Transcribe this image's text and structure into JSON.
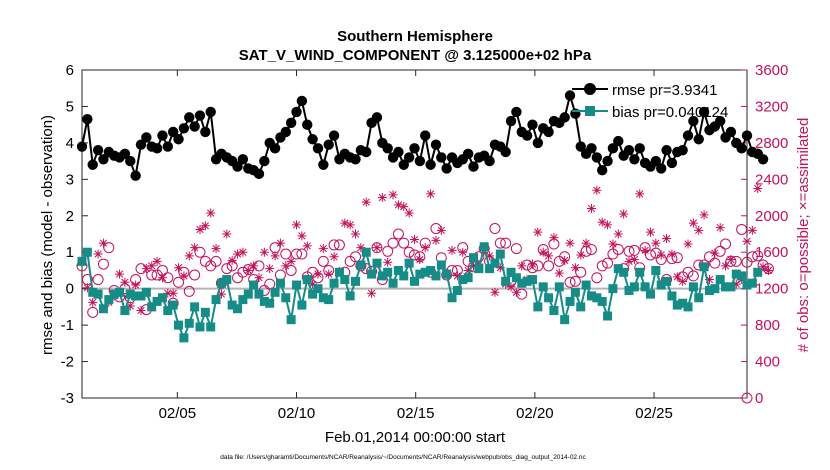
{
  "chart_data": {
    "type": "line",
    "title": "Southern Hemisphere",
    "subtitle": "SAT_V_WIND_COMPONENT @ 3.125000e+02 hPa",
    "xlabel": "Feb.01,2014 00:00:00 start",
    "ylabel": "rmse and bias (model - observation)",
    "y2label": "# of obs: o=possible; ×=assimilated",
    "footnote": "data file: /Users/gharamti/Documents/NCAR/Reanalysis/~/Documents/NCAR/Reanalysis/webpub/obs_diag_output_2014-02.nc",
    "xlim": [
      1,
      28.9
    ],
    "ylim": [
      -3,
      6
    ],
    "y2lim": [
      0,
      3600
    ],
    "x_ticks": [
      5,
      10,
      15,
      20,
      25
    ],
    "x_tick_labels": [
      "02/05",
      "02/10",
      "02/15",
      "02/20",
      "02/25"
    ],
    "y_ticks": [
      -3,
      -2,
      -1,
      0,
      1,
      2,
      3,
      4,
      5,
      6
    ],
    "y2_ticks": [
      0,
      400,
      800,
      1200,
      1600,
      2000,
      2400,
      2800,
      3200,
      3600
    ],
    "legend_position": "top-right",
    "grid": false,
    "colors": {
      "rmse": "#000000",
      "bias": "#148c87",
      "obs": "#c8105a",
      "zero": "#b4b4b4"
    },
    "series": [
      {
        "name": "rmse pr=3.9341",
        "axis": "left",
        "values": [
          3.9,
          4.65,
          3.4,
          3.8,
          3.55,
          3.75,
          3.65,
          3.6,
          3.7,
          3.5,
          3.1,
          3.95,
          4.15,
          3.9,
          3.85,
          4.2,
          3.9,
          4.3,
          4.1,
          4.4,
          4.7,
          4.45,
          4.75,
          4.3,
          4.85,
          3.55,
          3.7,
          3.6,
          3.5,
          3.35,
          3.55,
          3.3,
          3.25,
          3.15,
          3.5,
          4.0,
          3.85,
          4.15,
          4.3,
          4.55,
          4.85,
          5.15,
          4.5,
          4.1,
          3.85,
          3.4,
          3.95,
          4.2,
          3.55,
          3.7,
          3.6,
          3.55,
          3.8,
          3.75,
          4.55,
          4.7,
          4.0,
          3.85,
          3.6,
          3.75,
          3.4,
          3.6,
          3.85,
          3.5,
          4.2,
          3.4,
          3.95,
          3.6,
          3.3,
          3.6,
          3.45,
          3.55,
          3.7,
          3.35,
          3.6,
          3.65,
          3.5,
          3.95,
          3.9,
          3.75,
          4.6,
          4.85,
          4.3,
          4.2,
          4.5,
          4.0,
          4.4,
          4.3,
          4.6,
          4.55,
          4.7,
          5.3,
          4.8,
          3.9,
          3.7,
          3.85,
          3.6,
          3.25,
          3.5,
          3.85,
          4.05,
          3.65,
          3.8,
          3.55,
          3.85,
          3.45,
          3.35,
          3.5,
          3.3,
          3.8,
          3.45,
          3.75,
          3.8,
          4.2,
          4.6,
          4.1,
          4.85,
          4.35,
          4.45,
          4.6,
          4.15,
          4.3,
          4.0,
          3.85,
          4.2,
          3.75,
          3.7,
          3.55
        ]
      },
      {
        "name": "bias pr=0.040124",
        "axis": "left",
        "values": [
          0.75,
          1.0,
          -0.1,
          -0.15,
          -0.55,
          -0.3,
          -0.15,
          -0.1,
          -0.6,
          -0.15,
          -0.2,
          -0.2,
          -0.1,
          -0.5,
          -0.35,
          -0.25,
          -0.6,
          -0.45,
          -1.0,
          -1.35,
          -0.95,
          -0.5,
          -1.05,
          -0.65,
          -1.05,
          -0.3,
          0.15,
          0.25,
          -0.45,
          -0.55,
          -0.3,
          -0.15,
          0.1,
          -0.15,
          -0.35,
          -0.4,
          -0.1,
          0.15,
          -0.25,
          -0.85,
          0.1,
          -0.45,
          0.25,
          -0.15,
          0.0,
          -0.25,
          -0.3,
          0.15,
          0.45,
          0.25,
          -0.2,
          0.2,
          0.65,
          1.0,
          0.4,
          0.7,
          0.35,
          0.45,
          0.15,
          0.5,
          0.35,
          0.7,
          0.2,
          0.4,
          0.45,
          0.5,
          0.35,
          0.65,
          0.4,
          -0.25,
          -0.05,
          0.25,
          0.3,
          0.85,
          0.55,
          1.15,
          0.55,
          0.7,
          0.95,
          0.2,
          0.45,
          0.3,
          0.15,
          0.2,
          0.25,
          -0.5,
          0.05,
          -0.25,
          -0.6,
          0.05,
          -0.85,
          -0.35,
          -0.1,
          -0.5,
          0.1,
          -0.2,
          -0.25,
          -0.35,
          -0.75,
          0.0,
          0.55,
          0.45,
          -0.05,
          0.05,
          0.45,
          0.05,
          -0.15,
          0.5,
          0.1,
          0.2,
          -0.2,
          -0.45,
          -0.4,
          -0.5,
          0.05,
          -0.25,
          0.6,
          -0.05,
          0.0,
          0.25,
          0.05,
          0.05,
          0.4,
          0.35,
          0.1,
          0.15,
          0.45
        ]
      },
      {
        "name": "obs possible",
        "axis": "right",
        "marker": "circle",
        "values": [
          1450,
          1300,
          940,
          1300,
          1470,
          1650,
          1180,
          1110,
          1200,
          1100,
          1300,
          1420,
          970,
          1350,
          1350,
          1400,
          1320,
          1040,
          1270,
          1380,
          1170,
          1350,
          1600,
          1500,
          1450,
          1500,
          1260,
          1420,
          1450,
          1320,
          1380,
          1410,
          1300,
          1450,
          1180,
          1250,
          1650,
          1350,
          1580,
          1400,
          1580,
          1580,
          1330,
          1380,
          1320,
          1500,
          1400,
          1680,
          1680,
          1380,
          1500,
          1550,
          1450,
          1420,
          1390,
          1650,
          1300,
          1610,
          1700,
          1800,
          1700,
          1600,
          1570,
          1550,
          1700,
          1380,
          1860,
          1540,
          1350,
          1400,
          1400,
          1650,
          1500,
          1440,
          1550,
          1640,
          1500,
          1860,
          1700,
          1700,
          1280,
          1640,
          1140,
          1460,
          1430,
          1450,
          1630,
          1450,
          1690,
          1500,
          1550,
          1270,
          1280,
          1380,
          1610,
          1630,
          1320,
          1450,
          1480,
          1580,
          1630,
          1420,
          1610,
          1620,
          1430,
          1650,
          1570,
          1590,
          1520,
          1300,
          1530,
          1540,
          1330,
          1380,
          1340,
          1460,
          1460,
          1550,
          1480,
          1610,
          1690,
          1500,
          1500,
          1850,
          1490,
          1550,
          1560,
          1460,
          1420
        ]
      },
      {
        "name": "obs assimilated",
        "axis": "right",
        "marker": "x",
        "values": [
          1500,
          1210,
          1050,
          1580,
          1700,
          1050,
          1120,
          1360,
          1270,
          1010,
          1240,
          960,
          1420,
          1450,
          1500,
          1320,
          1150,
          1150,
          1430,
          1340,
          1560,
          1650,
          1850,
          1890,
          2030,
          1640,
          1140,
          1800,
          1510,
          1580,
          1600,
          1400,
          1450,
          1320,
          1600,
          1420,
          1560,
          1700,
          1450,
          1500,
          1900,
          1780,
          1670,
          1250,
          1360,
          1640,
          1360,
          1550,
          1390,
          1920,
          1900,
          1800,
          1650,
          2150,
          1150,
          1650,
          2200,
          1490,
          2230,
          2120,
          2100,
          2030,
          1740,
          1520,
          1650,
          2240,
          1730,
          1840,
          1370,
          1620,
          1340,
          1600,
          1400,
          1450,
          1470,
          1620,
          1560,
          1160,
          1430,
          1250,
          1220,
          1160,
          1450,
          1300,
          1470,
          1820,
          1600,
          1560,
          1760,
          1370,
          1510,
          1700,
          1430,
          1570,
          1700,
          2080,
          2280,
          1930,
          1900,
          1690,
          1800,
          2020,
          1500,
          1520,
          2240,
          1620,
          1820,
          1700,
          1570,
          1750,
          1580,
          1330,
          1280,
          1690,
          1920,
          1840,
          2010,
          1300,
          1590,
          1870,
          1450,
          1520,
          1250,
          1300,
          1720,
          1840,
          2300,
          1440,
          1400
        ]
      }
    ]
  }
}
